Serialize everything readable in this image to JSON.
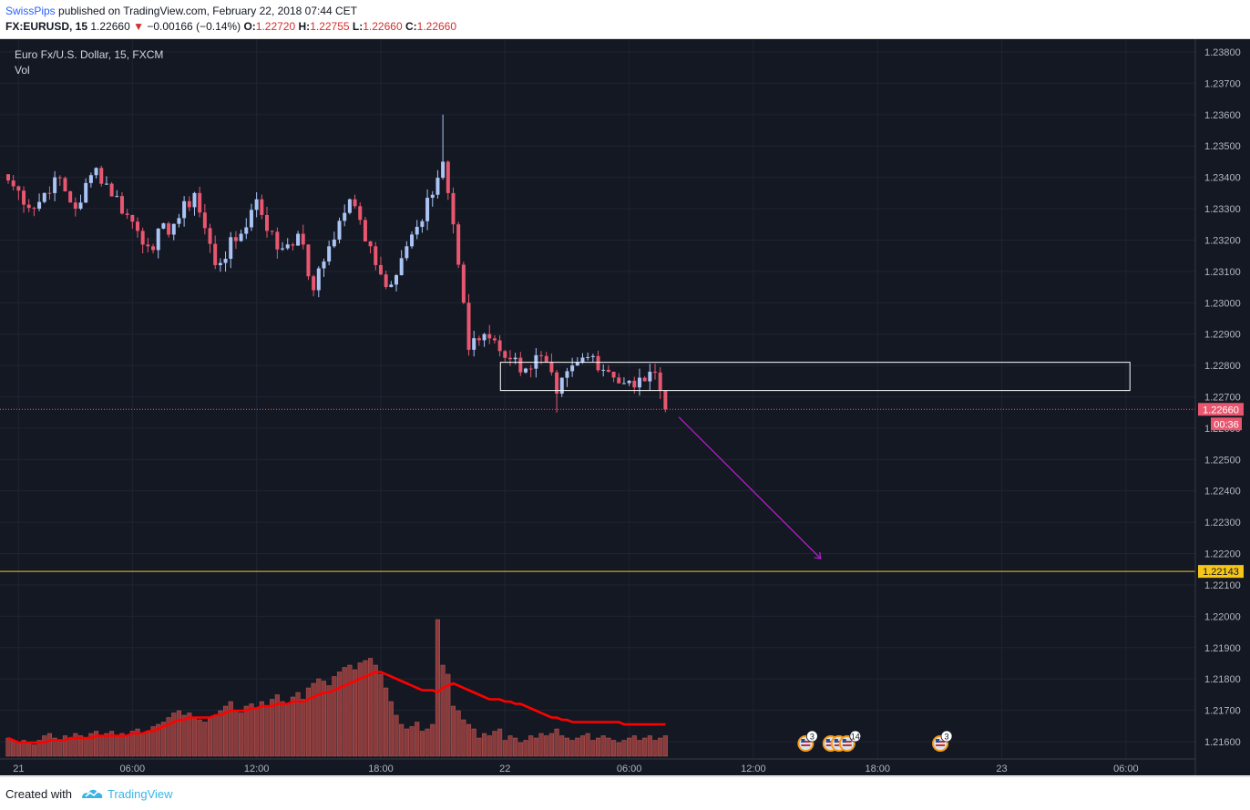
{
  "header": {
    "author": "SwissPips",
    "published_text": "published on TradingView.com, February 22, 2018 07:44 CET",
    "symbol": "FX:EURUSD, 15",
    "last": "1.22660",
    "change": "−0.00166 (−0.14%)",
    "o_label": "O:",
    "o_value": "1.22720",
    "h_label": "H:",
    "h_value": "1.22755",
    "l_label": "L:",
    "l_value": "1.22660",
    "c_label": "C:",
    "c_value": "1.22660"
  },
  "legend": {
    "instrument": "Euro Fx/U.S. Dollar, 15, FXCM",
    "indicator": "Vol"
  },
  "footer": {
    "created_with": "Created with",
    "brand": "TradingView"
  },
  "colors": {
    "background": "#141823",
    "up_candle": "#a9c4f5",
    "down_candle": "#e8576f",
    "volume_bar": "#8a3a3a",
    "volume_ma": "#ff0000",
    "price_line": "#e8576f",
    "target_line": "#f5c518",
    "arrow": "#b11fc8",
    "box": "#ffffff"
  },
  "chart_data": {
    "type": "candlestick",
    "symbol": "EURUSD",
    "timeframe": "15",
    "ylim": [
      1.2155,
      1.2385
    ],
    "y_ticks": [
      "1.23800",
      "1.23700",
      "1.23600",
      "1.23500",
      "1.23400",
      "1.23300",
      "1.23200",
      "1.23100",
      "1.23000",
      "1.22900",
      "1.22800",
      "1.22700",
      "1.22600",
      "1.22500",
      "1.22400",
      "1.22300",
      "1.22200",
      "1.22100",
      "1.22000",
      "1.21900",
      "1.21800",
      "1.21700",
      "1.21600"
    ],
    "x_ticks": [
      {
        "label": "21",
        "bar": 2
      },
      {
        "label": "06:00",
        "bar": 24
      },
      {
        "label": "12:00",
        "bar": 48
      },
      {
        "label": "18:00",
        "bar": 72
      },
      {
        "label": "22",
        "bar": 96
      },
      {
        "label": "06:00",
        "bar": 120
      },
      {
        "label": "12:00",
        "bar": 144
      },
      {
        "label": "18:00",
        "bar": 168
      },
      {
        "label": "23",
        "bar": 192
      },
      {
        "label": "06:00",
        "bar": 216
      }
    ],
    "key_points": [
      {
        "bar": 0,
        "price": 1.2339
      },
      {
        "bar": 5,
        "price": 1.233
      },
      {
        "bar": 9,
        "price": 1.234
      },
      {
        "bar": 13,
        "price": 1.233
      },
      {
        "bar": 17,
        "price": 1.2343
      },
      {
        "bar": 23,
        "price": 1.2328
      },
      {
        "bar": 27,
        "price": 1.2318
      },
      {
        "bar": 33,
        "price": 1.2327
      },
      {
        "bar": 36,
        "price": 1.2335
      },
      {
        "bar": 40,
        "price": 1.2312
      },
      {
        "bar": 45,
        "price": 1.2322
      },
      {
        "bar": 48,
        "price": 1.2333
      },
      {
        "bar": 52,
        "price": 1.2317
      },
      {
        "bar": 56,
        "price": 1.2322
      },
      {
        "bar": 59,
        "price": 1.2304
      },
      {
        "bar": 62,
        "price": 1.2318
      },
      {
        "bar": 66,
        "price": 1.2333
      },
      {
        "bar": 70,
        "price": 1.2318
      },
      {
        "bar": 73,
        "price": 1.2305
      },
      {
        "bar": 77,
        "price": 1.2318
      },
      {
        "bar": 80,
        "price": 1.2326
      },
      {
        "bar": 84,
        "price": 1.2345
      },
      {
        "bar": 86,
        "price": 1.2325
      },
      {
        "bar": 88,
        "price": 1.23
      },
      {
        "bar": 89,
        "price": 1.2285
      },
      {
        "bar": 92,
        "price": 1.229
      },
      {
        "bar": 94,
        "price": 1.2288
      },
      {
        "bar": 97,
        "price": 1.2282
      },
      {
        "bar": 100,
        "price": 1.2279
      },
      {
        "bar": 103,
        "price": 1.2283
      },
      {
        "bar": 106,
        "price": 1.2271
      },
      {
        "bar": 110,
        "price": 1.2281
      },
      {
        "bar": 113,
        "price": 1.2283
      },
      {
        "bar": 116,
        "price": 1.2278
      },
      {
        "bar": 121,
        "price": 1.2273
      },
      {
        "bar": 124,
        "price": 1.2278
      },
      {
        "bar": 126,
        "price": 1.2272
      },
      {
        "bar": 127,
        "price": 1.2266
      }
    ],
    "volume": [
      8,
      7,
      6,
      7,
      6,
      5,
      7,
      9,
      10,
      8,
      7,
      9,
      8,
      10,
      9,
      8,
      10,
      11,
      9,
      10,
      11,
      9,
      10,
      9,
      11,
      12,
      10,
      11,
      13,
      14,
      15,
      17,
      19,
      20,
      18,
      19,
      17,
      16,
      15,
      17,
      18,
      20,
      22,
      24,
      20,
      19,
      22,
      23,
      21,
      24,
      22,
      25,
      27,
      24,
      23,
      26,
      28,
      25,
      30,
      32,
      34,
      33,
      31,
      35,
      37,
      39,
      40,
      38,
      41,
      42,
      43,
      40,
      36,
      30,
      24,
      18,
      14,
      12,
      13,
      15,
      11,
      12,
      14,
      60,
      40,
      36,
      22,
      20,
      16,
      14,
      12,
      8,
      10,
      9,
      11,
      12,
      7,
      9,
      8,
      6,
      7,
      9,
      8,
      10,
      9,
      10,
      12,
      9,
      8,
      7,
      8,
      9,
      10,
      7,
      8,
      9,
      8,
      7,
      6,
      7,
      8,
      9,
      7,
      8,
      9,
      7,
      8,
      9
    ],
    "volume_ma": [
      8,
      7,
      6,
      6,
      6,
      6,
      6,
      6,
      7,
      7,
      7,
      7,
      8,
      8,
      8,
      8,
      8,
      9,
      9,
      9,
      9,
      9,
      9,
      9,
      10,
      10,
      10,
      11,
      11,
      12,
      13,
      14,
      15,
      16,
      16,
      17,
      17,
      17,
      17,
      17,
      18,
      18,
      19,
      20,
      20,
      20,
      20,
      21,
      21,
      22,
      22,
      22,
      23,
      23,
      23,
      24,
      24,
      24,
      25,
      26,
      27,
      28,
      28,
      29,
      30,
      31,
      32,
      33,
      34,
      35,
      36,
      37,
      37,
      36,
      35,
      34,
      33,
      32,
      31,
      30,
      29,
      29,
      29,
      28,
      30,
      31,
      32,
      31,
      30,
      29,
      28,
      27,
      26,
      25,
      25,
      25,
      24,
      24,
      23,
      23,
      22,
      21,
      20,
      19,
      18,
      17,
      17,
      16,
      16,
      15,
      15,
      15,
      15,
      15,
      15,
      15,
      15,
      15,
      15,
      14,
      14,
      14,
      14,
      14,
      14,
      14,
      14,
      14
    ],
    "annotations": {
      "current_price": "1.22660",
      "countdown": "00:36",
      "target_price": "1.22143",
      "consolidation_box": {
        "from_bar": 96,
        "to_bar": 215,
        "price_high": 1.2281,
        "price_low": 1.2272
      },
      "arrow": {
        "from_bar": 128,
        "from_price": 1.2265,
        "to_bar": 154,
        "to_price": 1.2219
      }
    },
    "events": [
      {
        "bar": 152,
        "count": "3"
      },
      {
        "bar": 160,
        "count": "14"
      },
      {
        "bar": 178,
        "count": "3"
      }
    ]
  }
}
